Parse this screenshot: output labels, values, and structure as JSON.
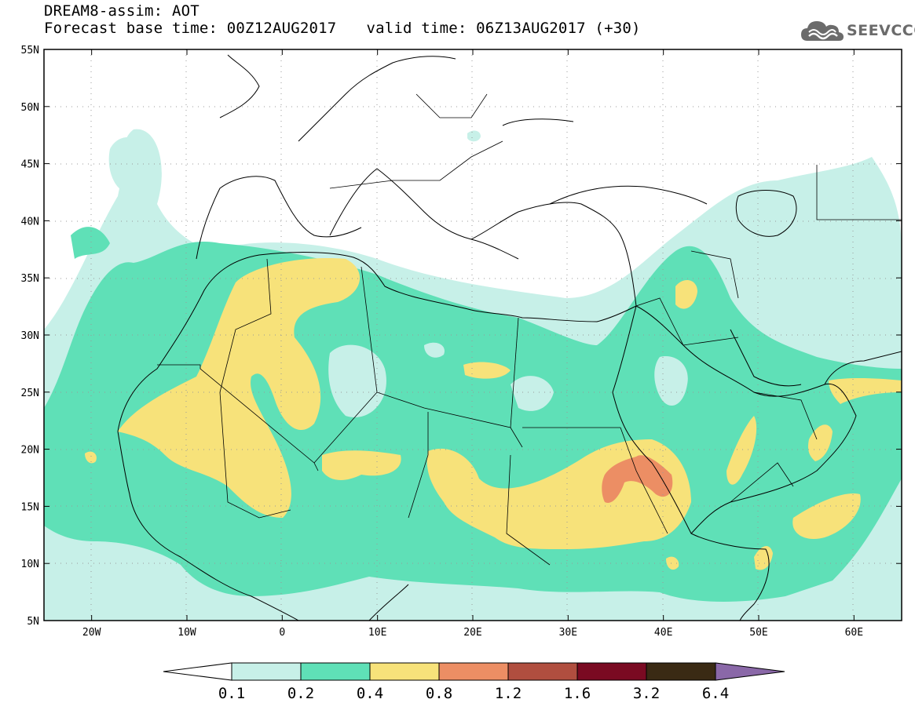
{
  "title": {
    "line1": "DREAM8-assim: AOT",
    "base_time": "Forecast base time: 00Z12AUG2017",
    "valid_time": "valid time: 06Z13AUG2017 (+30)"
  },
  "logo": {
    "text": "SEEVCCC",
    "icon": "cloud-icon"
  },
  "map": {
    "lon_range": [
      -25,
      65
    ],
    "lat_range": [
      5,
      55
    ],
    "lon_ticks": [
      {
        "value": -20,
        "label": "20W"
      },
      {
        "value": -10,
        "label": "10W"
      },
      {
        "value": 0,
        "label": "0"
      },
      {
        "value": 10,
        "label": "10E"
      },
      {
        "value": 20,
        "label": "20E"
      },
      {
        "value": 30,
        "label": "30E"
      },
      {
        "value": 40,
        "label": "40E"
      },
      {
        "value": 50,
        "label": "50E"
      },
      {
        "value": 60,
        "label": "60E"
      }
    ],
    "lat_ticks": [
      {
        "value": 55,
        "label": "55N"
      },
      {
        "value": 50,
        "label": "50N"
      },
      {
        "value": 45,
        "label": "45N"
      },
      {
        "value": 40,
        "label": "40N"
      },
      {
        "value": 35,
        "label": "35N"
      },
      {
        "value": 30,
        "label": "30N"
      },
      {
        "value": 25,
        "label": "25N"
      },
      {
        "value": 20,
        "label": "20N"
      },
      {
        "value": 15,
        "label": "15N"
      },
      {
        "value": 10,
        "label": "10N"
      },
      {
        "value": 5,
        "label": "5N"
      }
    ],
    "grid": true
  },
  "colorbar": {
    "labels": [
      "0.1",
      "0.2",
      "0.4",
      "0.8",
      "1.2",
      "1.6",
      "3.2",
      "6.4"
    ],
    "colors": [
      "#c7f0e8",
      "#5fe0b7",
      "#f7e27a",
      "#ec8e64",
      "#b04e3f",
      "#7a0a22",
      "#3a2a14",
      "#8a68a8"
    ],
    "under_color": "#ffffff"
  }
}
